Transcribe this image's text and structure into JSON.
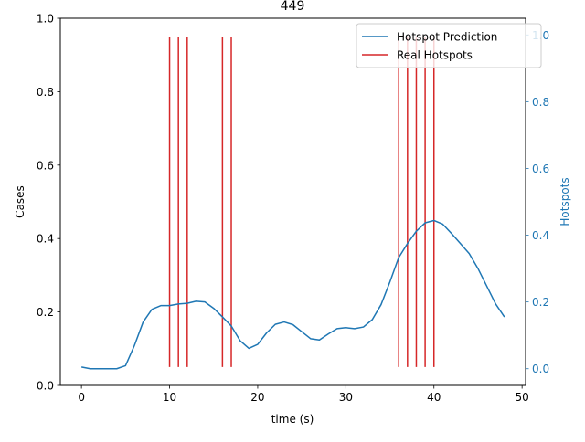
{
  "chart_data": {
    "type": "line",
    "title": "449",
    "xlabel": "time (s)",
    "ylabel": "Cases",
    "y2label": "Hotspots",
    "xlim": [
      -2.4,
      50.4
    ],
    "ylim": [
      0,
      1.0
    ],
    "y2lim": [
      -0.05,
      1.05
    ],
    "xticks": [
      0,
      10,
      20,
      30,
      40,
      50
    ],
    "yticks": [
      0.0,
      0.2,
      0.4,
      0.6,
      0.8,
      1.0
    ],
    "y2ticks": [
      0.0,
      0.2,
      0.4,
      0.6,
      0.8,
      1.0
    ],
    "grid": false,
    "legend_position": "top-right",
    "colors": {
      "prediction": "#1f77b4",
      "real": "#d62728",
      "right_axis": "#1f77b4",
      "axis": "#000000"
    },
    "series": [
      {
        "name": "Hotspot Prediction",
        "kind": "line",
        "axis": "right",
        "x": [
          0,
          1,
          2,
          3,
          4,
          5,
          6,
          7,
          8,
          9,
          10,
          11,
          12,
          13,
          14,
          15,
          16,
          17,
          18,
          19,
          20,
          21,
          22,
          23,
          24,
          25,
          26,
          27,
          28,
          29,
          30,
          31,
          32,
          33,
          34,
          35,
          36,
          37,
          38,
          39,
          40,
          41,
          42,
          43,
          44,
          45,
          46,
          47,
          48
        ],
        "values": [
          0.005,
          0.0,
          0.0,
          0.0,
          0.0,
          0.009,
          0.069,
          0.14,
          0.178,
          0.189,
          0.189,
          0.194,
          0.196,
          0.202,
          0.2,
          0.181,
          0.155,
          0.128,
          0.084,
          0.061,
          0.073,
          0.107,
          0.133,
          0.14,
          0.132,
          0.111,
          0.09,
          0.086,
          0.104,
          0.12,
          0.123,
          0.12,
          0.125,
          0.147,
          0.192,
          0.26,
          0.333,
          0.375,
          0.412,
          0.437,
          0.444,
          0.433,
          0.405,
          0.375,
          0.345,
          0.3,
          0.247,
          0.194,
          0.155
        ]
      },
      {
        "name": "Real Hotspots",
        "kind": "vlines",
        "axis": "left",
        "x": [
          10,
          11,
          12,
          16,
          17,
          36,
          37,
          38,
          39,
          40
        ],
        "ymin": 0.05,
        "ymax": 0.95
      }
    ]
  }
}
